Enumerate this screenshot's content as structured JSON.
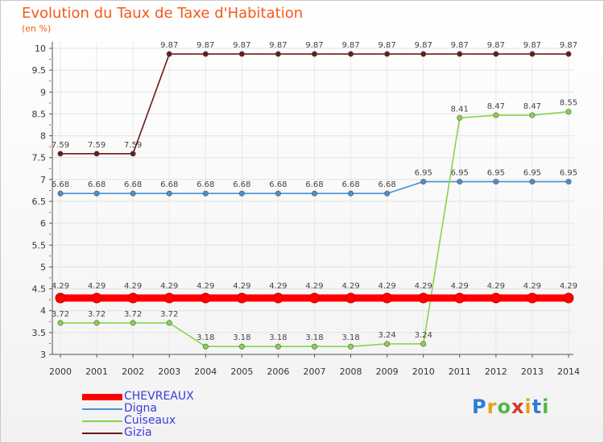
{
  "chart_data": {
    "type": "line",
    "title": "Evolution du Taux de Taxe d'Habitation",
    "unit_label": "(en %)",
    "xlabel": "",
    "ylabel": "",
    "ylim": [
      3,
      10
    ],
    "yticks": [
      "3",
      "3.5",
      "4",
      "4.5",
      "5",
      "5.5",
      "6",
      "6.5",
      "7",
      "7.5",
      "8",
      "8.5",
      "9",
      "9.5",
      "10"
    ],
    "categories": [
      "2000",
      "2001",
      "2002",
      "2003",
      "2004",
      "2005",
      "2006",
      "2007",
      "2008",
      "2009",
      "2010",
      "2011",
      "2012",
      "2013",
      "2014"
    ],
    "series": [
      {
        "name": "Gizia",
        "color": "#6b1a1a",
        "values": [
          7.59,
          7.59,
          7.59,
          9.87,
          9.87,
          9.87,
          9.87,
          9.87,
          9.87,
          9.87,
          9.87,
          9.87,
          9.87,
          9.87,
          9.87
        ],
        "labels": [
          "7.59",
          "7.59",
          "7.59",
          "9.87",
          "9.87",
          "9.87",
          "9.87",
          "9.87",
          "9.87",
          "9.87",
          "9.87",
          "9.87",
          "9.87",
          "9.87",
          "9.87"
        ]
      },
      {
        "name": "Digna",
        "color": "#4a90d0",
        "values": [
          6.68,
          6.68,
          6.68,
          6.68,
          6.68,
          6.68,
          6.68,
          6.68,
          6.68,
          6.68,
          6.95,
          6.95,
          6.95,
          6.95,
          6.95
        ],
        "labels": [
          "6.68",
          "6.68",
          "6.68",
          "6.68",
          "6.68",
          "6.68",
          "6.68",
          "6.68",
          "6.68",
          "6.68",
          "6.95",
          "6.95",
          "6.95",
          "6.95",
          "6.95"
        ]
      },
      {
        "name": "Cuiseaux",
        "color": "#88d449",
        "values": [
          3.72,
          3.72,
          3.72,
          3.72,
          3.18,
          3.18,
          3.18,
          3.18,
          3.18,
          3.24,
          3.24,
          8.41,
          8.47,
          8.47,
          8.55
        ],
        "labels": [
          "3.72",
          "3.72",
          "3.72",
          "3.72",
          "3.18",
          "3.18",
          "3.18",
          "3.18",
          "3.18",
          "3.24",
          "3.24",
          "8.41",
          "8.47",
          "8.47",
          "8.55"
        ]
      },
      {
        "name": "CHEVREAUX",
        "color": "#ff0000",
        "values": [
          4.29,
          4.29,
          4.29,
          4.29,
          4.29,
          4.29,
          4.29,
          4.29,
          4.29,
          4.29,
          4.29,
          4.29,
          4.29,
          4.29,
          4.29
        ],
        "labels": [
          "4.29",
          "4.29",
          "4.29",
          "4.29",
          "4.29",
          "4.29",
          "4.29",
          "4.29",
          "4.29",
          "4.29",
          "4.29",
          "4.29",
          "4.29",
          "4.29",
          "4.29"
        ]
      }
    ],
    "legend": [
      "CHEVREAUX",
      "Digna",
      "Cuiseaux",
      "Gizia"
    ],
    "legend_position": "bottom-left"
  },
  "brand": {
    "letters": [
      "P",
      "r",
      "o",
      "x",
      "i",
      "t",
      "i"
    ],
    "colors": [
      "#2a7fd4",
      "#e8a21a",
      "#52b847",
      "#d23b2a",
      "#e8a21a",
      "#2a7fd4",
      "#52b847"
    ]
  }
}
